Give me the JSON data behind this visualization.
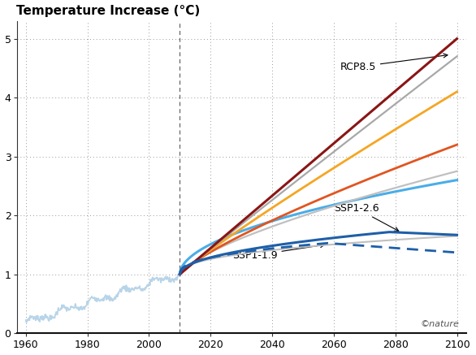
{
  "title": "Temperature Increase (°C)",
  "xlim": [
    1957,
    2103
  ],
  "ylim": [
    0,
    5.3
  ],
  "xticks": [
    1960,
    1980,
    2000,
    2020,
    2040,
    2060,
    2080,
    2100
  ],
  "yticks": [
    0,
    1,
    2,
    3,
    4,
    5
  ],
  "vline_x": 2010,
  "hist_color": "#b8d4e8",
  "rcp85_dark_color": "#8b1515",
  "rcp85_gray_color": "#a8a8a8",
  "ssp585_orange_color": "#f5a623",
  "ssp370_color": "#e05520",
  "ssp245_gray_color": "#c0c0c0",
  "ssp126_blue_color": "#4aade8",
  "ssp126_dark_blue_color": "#1e5fa8",
  "ssp119_color": "#1e5fa8",
  "background_color": "#ffffff",
  "annotation_rcp85": "RCP8.5",
  "annotation_ssp126": "SSP1-2.6",
  "annotation_ssp119": "SSP1-1.9",
  "nature_text": "©nature"
}
